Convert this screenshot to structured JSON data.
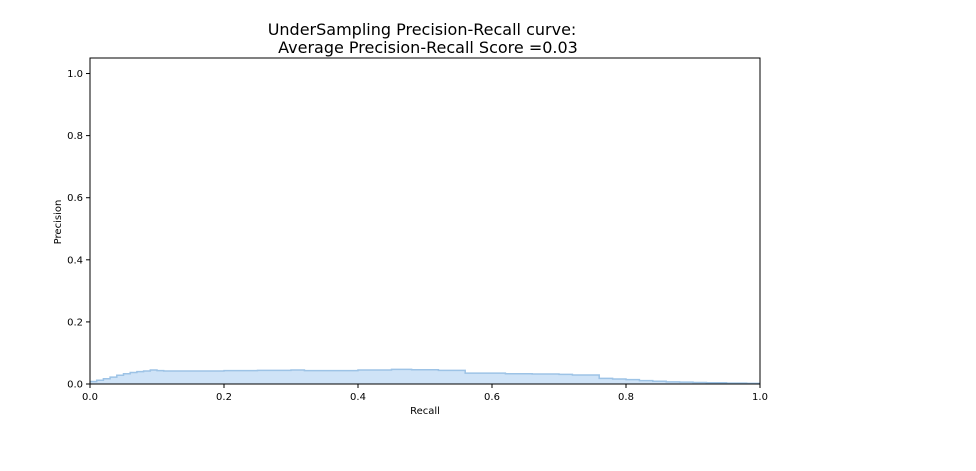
{
  "chart_data": {
    "type": "area",
    "title_line1": "UnderSampling Precision-Recall curve:",
    "title_line2": "Average Precision-Recall Score =0.03",
    "xlabel": "Recall",
    "ylabel": "Precision",
    "xlim": [
      0.0,
      1.0
    ],
    "ylim": [
      0.0,
      1.05
    ],
    "x_ticks": [
      "0.0",
      "0.2",
      "0.4",
      "0.6",
      "0.8",
      "1.0"
    ],
    "y_ticks": [
      "0.0",
      "0.2",
      "0.4",
      "0.6",
      "0.8",
      "1.0"
    ],
    "grid": false,
    "step": "post",
    "fill_color": "#cfe3f7",
    "line_color": "#9dc3e6",
    "series": [
      {
        "x": [
          0.0,
          0.01,
          0.02,
          0.03,
          0.04,
          0.05,
          0.06,
          0.07,
          0.08,
          0.09,
          0.1,
          0.11,
          0.15,
          0.2,
          0.25,
          0.3,
          0.32,
          0.35,
          0.4,
          0.45,
          0.48,
          0.52,
          0.56,
          0.6,
          0.62,
          0.66,
          0.7,
          0.72,
          0.75,
          0.76,
          0.78,
          0.8,
          0.82,
          0.84,
          0.86,
          0.88,
          0.9,
          0.92,
          0.95,
          0.98,
          1.0
        ],
        "y": [
          0.008,
          0.012,
          0.017,
          0.022,
          0.028,
          0.033,
          0.037,
          0.04,
          0.042,
          0.045,
          0.043,
          0.042,
          0.042,
          0.043,
          0.044,
          0.045,
          0.043,
          0.043,
          0.045,
          0.047,
          0.046,
          0.044,
          0.035,
          0.035,
          0.033,
          0.032,
          0.031,
          0.029,
          0.029,
          0.018,
          0.016,
          0.014,
          0.011,
          0.009,
          0.007,
          0.006,
          0.005,
          0.004,
          0.003,
          0.002,
          0.002
        ]
      }
    ]
  }
}
